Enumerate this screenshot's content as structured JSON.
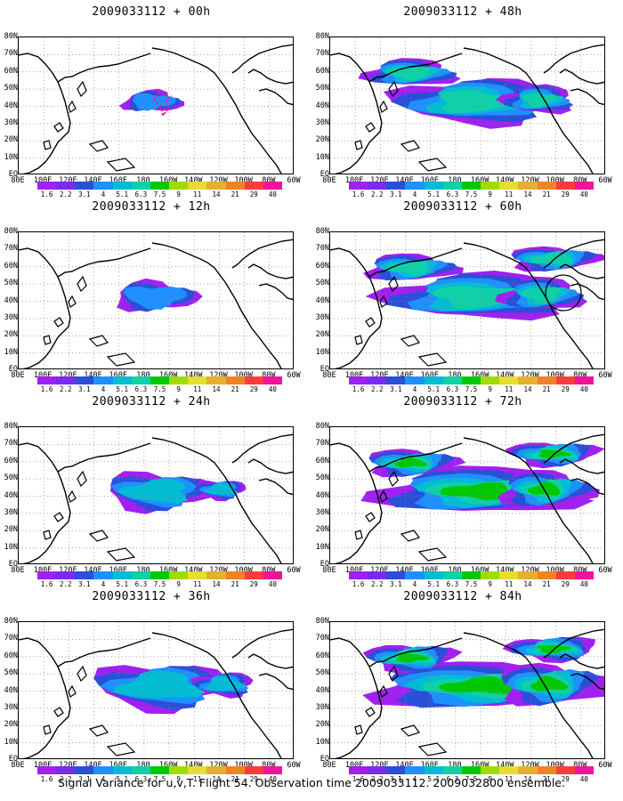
{
  "panels": [
    {
      "title": "2009033112 + 00h",
      "lead": 0
    },
    {
      "title": "2009033112 + 48h",
      "lead": 48
    },
    {
      "title": "2009033112 + 12h",
      "lead": 12
    },
    {
      "title": "2009033112 + 60h",
      "lead": 60
    },
    {
      "title": "2009033112 + 24h",
      "lead": 24
    },
    {
      "title": "2009033112 + 72h",
      "lead": 72
    },
    {
      "title": "2009033112 + 36h",
      "lead": 36
    },
    {
      "title": "2009033112 + 84h",
      "lead": 84
    }
  ],
  "y_labels": [
    "80N",
    "70N",
    "60N",
    "50N",
    "40N",
    "30N",
    "20N",
    "10N",
    "EQ"
  ],
  "x_labels": [
    "80E",
    "100E",
    "120E",
    "140E",
    "160E",
    "180",
    "160W",
    "140W",
    "120W",
    "100W",
    "80W",
    "60W"
  ],
  "colorbar_labels": [
    "1.6",
    "2.2",
    "3.1",
    "4",
    "5.1",
    "6.3",
    "7.5",
    "9",
    "11",
    "14",
    "21",
    "29",
    "40"
  ],
  "colorbar_colors": [
    "#a020f0",
    "#7b29ee",
    "#2a4fd8",
    "#1e90ff",
    "#00bcd4",
    "#10d0a8",
    "#00c800",
    "#a0dc00",
    "#e6dc32",
    "#e6af2d",
    "#f08228",
    "#fa3c3c",
    "#f0149b"
  ],
  "footer": "Signal Variance for u,v,T. Flight 54. Observation time 2009033112. 2009032800 ensemble."
}
